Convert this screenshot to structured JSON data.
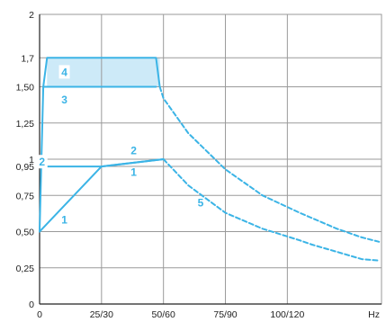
{
  "chart_data": {
    "type": "line",
    "title": "",
    "xlabel": "",
    "ylabel": "",
    "x_unit": "Hz",
    "grid": true,
    "xlim": [
      0,
      138
    ],
    "ylim": [
      0,
      2
    ],
    "x_ticks": [
      {
        "value": 0,
        "label": "0"
      },
      {
        "value": 25,
        "label": "25/30"
      },
      {
        "value": 50,
        "label": "50/60"
      },
      {
        "value": 75,
        "label": "75/90"
      },
      {
        "value": 100,
        "label": "100/120"
      }
    ],
    "y_ticks": [
      {
        "value": 0,
        "label": "0"
      },
      {
        "value": 0.25,
        "label": "0,25"
      },
      {
        "value": 0.5,
        "label": "0,50"
      },
      {
        "value": 0.75,
        "label": "0,75"
      },
      {
        "value": 0.95,
        "label": "0,95"
      },
      {
        "value": 1.0,
        "label": "1"
      },
      {
        "value": 1.25,
        "label": "1,25"
      },
      {
        "value": 1.5,
        "label": "1,50"
      },
      {
        "value": 1.7,
        "label": "1,7"
      },
      {
        "value": 2.0,
        "label": "2"
      }
    ],
    "colors": {
      "curve": "#3bb4e6",
      "fill": "#cdeaf8",
      "grid": "#9a9a9a",
      "axis": "#222222"
    },
    "series": [
      {
        "name": "1",
        "style": "solid",
        "points": [
          [
            0,
            0.5
          ],
          [
            25,
            0.95
          ],
          [
            50,
            1.0
          ]
        ]
      },
      {
        "name": "2",
        "style": "solid",
        "points": [
          [
            0,
            0.95
          ],
          [
            25,
            0.95
          ],
          [
            50,
            1.0
          ]
        ]
      },
      {
        "name": "3",
        "style": "solid",
        "points": [
          [
            0,
            0.5
          ],
          [
            1.5,
            1.5
          ],
          [
            47,
            1.5
          ]
        ]
      },
      {
        "name": "4",
        "style": "solid",
        "points": [
          [
            1.5,
            1.5
          ],
          [
            3,
            1.7
          ],
          [
            47,
            1.7
          ],
          [
            48.5,
            1.5
          ]
        ]
      },
      {
        "name": "5",
        "style": "dashed",
        "points": [
          [
            50,
            1.0
          ],
          [
            60,
            0.82
          ],
          [
            75,
            0.63
          ],
          [
            90,
            0.52
          ],
          [
            105,
            0.44
          ],
          [
            110,
            0.41
          ],
          [
            120,
            0.36
          ],
          [
            130,
            0.31
          ],
          [
            137,
            0.3
          ]
        ]
      },
      {
        "name": "",
        "style": "dashed",
        "points": [
          [
            48.5,
            1.5
          ],
          [
            50,
            1.42
          ],
          [
            60,
            1.18
          ],
          [
            75,
            0.93
          ],
          [
            90,
            0.75
          ],
          [
            105,
            0.63
          ],
          [
            120,
            0.52
          ],
          [
            130,
            0.46
          ],
          [
            137,
            0.43
          ]
        ]
      }
    ],
    "shaded_band": {
      "y_from": 1.5,
      "y_to": 1.7,
      "x_from": 3,
      "x_to": 48.5
    },
    "curve_labels": [
      {
        "text": "4",
        "x": 10,
        "y": 1.6,
        "boxed": true
      },
      {
        "text": "3",
        "x": 10,
        "y": 1.41
      },
      {
        "text": "2",
        "x": 1,
        "y": 0.98,
        "boxed": true
      },
      {
        "text": "2",
        "x": 38,
        "y": 1.06
      },
      {
        "text": "1",
        "x": 38,
        "y": 0.91
      },
      {
        "text": "1",
        "x": 10,
        "y": 0.58
      },
      {
        "text": "5",
        "x": 65,
        "y": 0.7
      }
    ]
  }
}
